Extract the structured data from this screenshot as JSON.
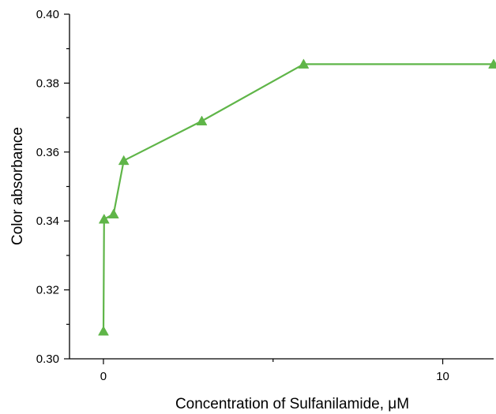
{
  "chart_data": {
    "type": "line",
    "title": "",
    "xlabel": "Concentration of Sulfanilamide, μM",
    "ylabel": "Color absorbance",
    "xlim": [
      -1,
      11.5
    ],
    "ylim": [
      0.3,
      0.4
    ],
    "x_ticks": [
      0,
      10
    ],
    "x_tick_labels": [
      "0",
      "10"
    ],
    "y_ticks": [
      0.3,
      0.32,
      0.34,
      0.36,
      0.38,
      0.4
    ],
    "y_tick_labels": [
      "0.30",
      "0.32",
      "0.34",
      "0.36",
      "0.38",
      "0.40"
    ],
    "grid": false,
    "legend": false,
    "marker": "triangle",
    "series": [
      {
        "color": "#5fb548",
        "x": [
          0,
          0.02,
          0.3,
          0.6,
          2.9,
          5.9,
          11.5
        ],
        "y": [
          0.308,
          0.3405,
          0.342,
          0.3575,
          0.369,
          0.3855,
          0.3855
        ]
      }
    ]
  }
}
